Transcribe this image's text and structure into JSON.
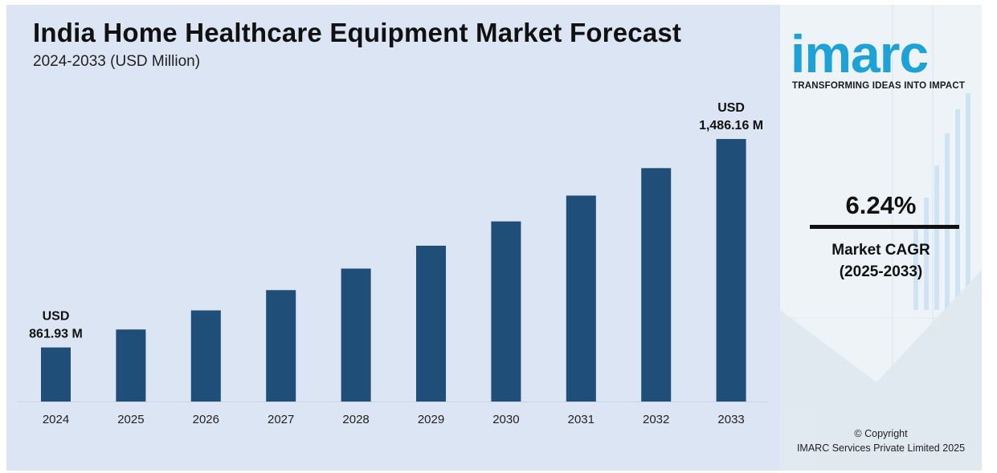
{
  "chart_data": {
    "type": "bar",
    "title": "India Home Healthcare Equipment Market Forecast",
    "subtitle": "2024-2033 (USD Million)",
    "categories": [
      "2024",
      "2025",
      "2026",
      "2027",
      "2028",
      "2029",
      "2030",
      "2031",
      "2032",
      "2033"
    ],
    "values": [
      861.93,
      915.7,
      972.9,
      1033.6,
      1098.1,
      1166.6,
      1239.4,
      1316.7,
      1398.9,
      1486.16
    ],
    "ylim": [
      700,
      1520
    ],
    "bar_color": "#1f4e79",
    "annotations": [
      {
        "category": "2024",
        "line1": "USD",
        "line2": "861.93 M"
      },
      {
        "category": "2033",
        "line1": "USD",
        "line2": "1,486.16 M"
      }
    ],
    "grid": false,
    "legend": "none"
  },
  "side": {
    "logo_text": "imarc",
    "tagline": "TRANSFORMING IDEAS INTO IMPACT",
    "cagr_value": "6.24%",
    "cagr_label_1": "Market CAGR",
    "cagr_label_2": "(2025-2033)",
    "copyright_1": "© Copyright",
    "copyright_2": "IMARC Services Private Limited 2025",
    "accent_color": "#1ba2d9"
  }
}
